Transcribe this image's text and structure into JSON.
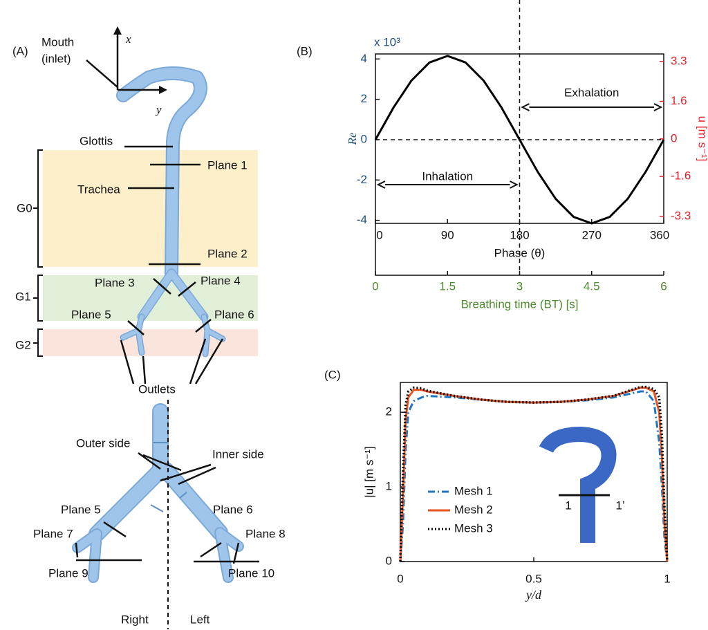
{
  "chart_data": [
    {
      "type": "line",
      "panel_label": "(B)",
      "exponent_label": "x 10³",
      "x": [
        0,
        22.5,
        45,
        67.5,
        90,
        112.5,
        135,
        157.5,
        180,
        202.5,
        225,
        247.5,
        270,
        292.5,
        315,
        337.5,
        360
      ],
      "values": [
        0,
        1.59,
        2.93,
        3.83,
        4.15,
        3.83,
        2.93,
        1.59,
        0,
        -1.59,
        -2.93,
        -3.83,
        -4.15,
        -3.83,
        -2.93,
        -1.59,
        0
      ],
      "color": "#000000",
      "dash": "solid",
      "xlim": [
        0,
        360
      ],
      "xticks": [
        0,
        90,
        180,
        270,
        360
      ],
      "xlabel": "Phase (θ)",
      "ylim": [
        -4.15,
        4.25
      ],
      "yticks": [
        -4,
        -2,
        0,
        2,
        4
      ],
      "ylabel": "Re",
      "y_color": "#1f4e79",
      "y2lim": [
        -3.6,
        3.62
      ],
      "y2ticks": [
        -3.3,
        -1.6,
        0,
        1.6,
        3.3
      ],
      "y2label": "u [m s⁻¹]",
      "y2_color": "#e8202a",
      "x2lim": [
        0,
        6
      ],
      "x2ticks": [
        0,
        1.5,
        3,
        4.5,
        6
      ],
      "x2label": "Breathing time (BT) [s]",
      "x2_color": "#4e8a2e",
      "annotations": [
        "Exhalation",
        "Inhalation"
      ]
    },
    {
      "type": "line",
      "panel_label": "(C)",
      "x": [
        0,
        0.01,
        0.02,
        0.03,
        0.05,
        0.08,
        0.1,
        0.2,
        0.3,
        0.4,
        0.5,
        0.6,
        0.7,
        0.8,
        0.9,
        0.92,
        0.95,
        0.97,
        0.98,
        0.99,
        1
      ],
      "series": [
        {
          "name": "Mesh 1",
          "color": "#1f77c4",
          "dash": "dashdot",
          "values": [
            0,
            0.5,
            1.5,
            2.0,
            2.15,
            2.2,
            2.22,
            2.2,
            2.17,
            2.14,
            2.13,
            2.14,
            2.16,
            2.2,
            2.28,
            2.28,
            2.15,
            1.6,
            1.0,
            0.3,
            0
          ]
        },
        {
          "name": "Mesh 2",
          "color": "#e8541e",
          "dash": "solid",
          "values": [
            0,
            0.9,
            1.9,
            2.2,
            2.3,
            2.3,
            2.28,
            2.22,
            2.17,
            2.14,
            2.13,
            2.14,
            2.17,
            2.22,
            2.33,
            2.33,
            2.28,
            2.0,
            1.4,
            0.5,
            0
          ]
        },
        {
          "name": "Mesh 3",
          "color": "#000000",
          "dash": "dotted",
          "values": [
            0,
            1.2,
            2.1,
            2.28,
            2.33,
            2.32,
            2.29,
            2.22,
            2.17,
            2.14,
            2.13,
            2.14,
            2.17,
            2.22,
            2.34,
            2.34,
            2.31,
            2.2,
            1.7,
            0.7,
            0
          ]
        }
      ],
      "xlim": [
        0,
        1
      ],
      "xticks": [
        0,
        0.5,
        1
      ],
      "xlabel": "y/d",
      "ylim": [
        0,
        2.4
      ],
      "yticks": [
        0,
        1,
        2
      ],
      "ylabel": "|u| [m s⁻¹]",
      "legend": "lower left",
      "annotations": [
        "1",
        "1’"
      ]
    }
  ],
  "diagram": {
    "panel_label": "(A)",
    "mouth_label": [
      "Mouth",
      "(inlet)"
    ],
    "axis_x": "x",
    "axis_y": "y",
    "upper_labels": [
      "Glottis",
      "Plane 1",
      "Trachea",
      "Plane 2",
      "Plane 3",
      "Plane 4",
      "Plane 5",
      "Plane 6",
      "Outlets"
    ],
    "generations": [
      "G0",
      "G1",
      "G2"
    ],
    "lower_labels": [
      "Outer side",
      "Inner side",
      "Plane 5",
      "Plane 6",
      "Plane 7",
      "Plane 8",
      "Plane 9",
      "Plane 10"
    ],
    "sides": [
      "Right",
      "Left"
    ]
  }
}
